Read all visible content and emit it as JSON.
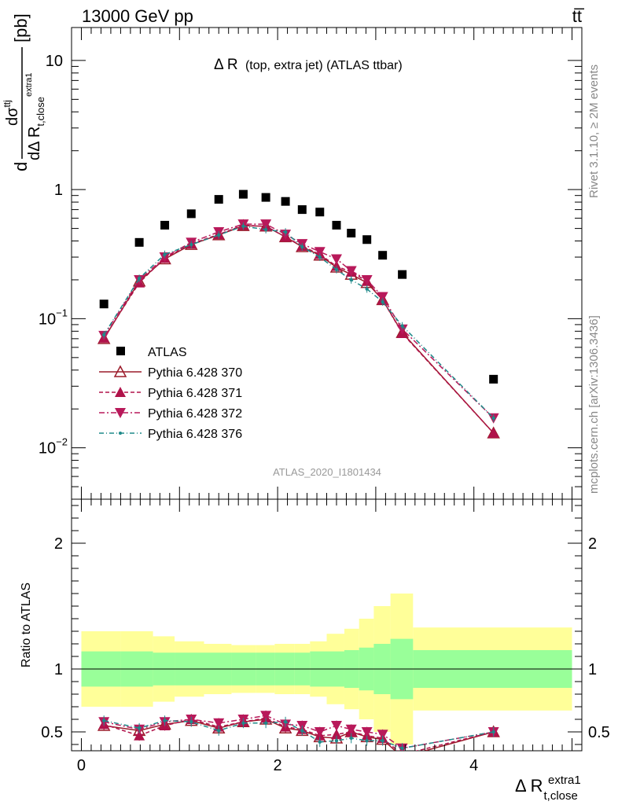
{
  "header": {
    "energy_label": "13000 GeV pp",
    "process_label": "tt̅"
  },
  "side_labels": {
    "rivet": "Rivet 3.1.10, ≥ 2M events",
    "mcplots": "mcplots.cern.ch [arXiv:1306.3436]"
  },
  "main_plot": {
    "title_main": "Δ R",
    "title_rest": "(top, extra jet) (ATLAS ttbar)",
    "ylabel": {
      "d1": "d",
      "dsigma": "dσ",
      "sigma_sup": "ttj",
      "denom_d": "dΔ R",
      "denom_sub": "t,close",
      "denom_sup": "extra1",
      "unit": "[pb]"
    },
    "y_ticks": [
      {
        "value": 10,
        "label": "10"
      },
      {
        "value": 1,
        "label": "1"
      },
      {
        "value": 0.1,
        "label": "10",
        "exp": "−1"
      },
      {
        "value": 0.01,
        "label": "10",
        "exp": "−2"
      }
    ],
    "analysis_tag": "ATLAS_2020_I1801434"
  },
  "ratio_plot": {
    "ylabel": "Ratio to ATLAS",
    "y_ticks": [
      "0.5",
      "1",
      "2"
    ],
    "x_ticks": [
      "0",
      "2",
      "4"
    ],
    "xlabel_main": "Δ R",
    "xlabel_sub": "t,close",
    "xlabel_sup": "extra1"
  },
  "legend": [
    {
      "label": "ATLAS",
      "key": "atlas"
    },
    {
      "label": "Pythia 6.428 370",
      "key": "p370"
    },
    {
      "label": "Pythia 6.428 371",
      "key": "p371"
    },
    {
      "label": "Pythia 6.428 372",
      "key": "p372"
    },
    {
      "label": "Pythia 6.428 376",
      "key": "p376"
    }
  ],
  "colors": {
    "data": "#000000",
    "p370": "#9b1b2a",
    "p371": "#b0124a",
    "p372": "#b8195a",
    "p376": "#1f8a8a",
    "band_inner": "#99ff99",
    "band_outer": "#ffff99"
  },
  "chart_data": {
    "type": "scatter",
    "y_scale": "log",
    "xlim": [
      -0.1,
      5.1
    ],
    "ylim": [
      0.004,
      18
    ],
    "ratio_ylim": [
      0.35,
      2.35
    ],
    "x": [
      0.23,
      0.59,
      0.85,
      1.12,
      1.4,
      1.65,
      1.88,
      2.08,
      2.25,
      2.43,
      2.6,
      2.75,
      2.91,
      3.07,
      3.27,
      4.2
    ],
    "bin_edges": [
      0.0,
      0.4,
      0.73,
      0.95,
      1.25,
      1.53,
      1.78,
      1.97,
      2.17,
      2.33,
      2.5,
      2.68,
      2.83,
      2.98,
      3.15,
      3.38,
      5.0
    ],
    "series": [
      {
        "name": "ATLAS",
        "key": "atlas",
        "values": [
          0.13,
          0.39,
          0.53,
          0.65,
          0.84,
          0.92,
          0.87,
          0.81,
          0.7,
          0.67,
          0.53,
          0.46,
          0.41,
          0.31,
          0.22,
          0.034
        ]
      },
      {
        "name": "Pythia 6.428 370",
        "key": "p370",
        "values": [
          0.07,
          0.195,
          0.29,
          0.375,
          0.445,
          0.525,
          0.52,
          0.43,
          0.36,
          0.31,
          0.25,
          0.22,
          0.19,
          0.14,
          0.078,
          0.013
        ]
      },
      {
        "name": "Pythia 6.428 371",
        "key": "p371",
        "values": [
          0.071,
          0.19,
          0.295,
          0.38,
          0.45,
          0.53,
          0.52,
          0.43,
          0.365,
          0.315,
          0.255,
          0.23,
          0.195,
          0.14,
          0.077,
          0.013
        ]
      },
      {
        "name": "Pythia 6.428 372",
        "key": "p372",
        "values": [
          0.074,
          0.2,
          0.3,
          0.39,
          0.47,
          0.54,
          0.54,
          0.45,
          0.38,
          0.33,
          0.29,
          0.235,
          0.2,
          0.148,
          0.083,
          0.017
        ]
      },
      {
        "name": "Pythia 6.428 376",
        "key": "p376",
        "values": [
          0.075,
          0.205,
          0.315,
          0.375,
          0.445,
          0.52,
          0.49,
          0.47,
          0.36,
          0.3,
          0.24,
          0.2,
          0.17,
          0.135,
          0.088,
          0.017
        ]
      }
    ],
    "ratio_series": [
      {
        "key": "p370",
        "values": [
          0.55,
          0.51,
          0.56,
          0.59,
          0.53,
          0.58,
          0.6,
          0.53,
          0.51,
          0.46,
          0.45,
          0.5,
          0.46,
          0.44,
          0.3,
          0.5
        ]
      },
      {
        "key": "p371",
        "values": [
          0.56,
          0.47,
          0.55,
          0.6,
          0.54,
          0.58,
          0.61,
          0.54,
          0.52,
          0.47,
          0.48,
          0.5,
          0.47,
          0.45,
          0.32,
          0.5
        ]
      },
      {
        "key": "p372",
        "values": [
          0.58,
          0.52,
          0.58,
          0.6,
          0.57,
          0.6,
          0.63,
          0.56,
          0.55,
          0.5,
          0.55,
          0.52,
          0.5,
          0.48,
          0.37,
          0.5
        ]
      },
      {
        "key": "p376",
        "values": [
          0.59,
          0.53,
          0.59,
          0.58,
          0.51,
          0.57,
          0.57,
          0.58,
          0.51,
          0.42,
          0.43,
          0.45,
          0.43,
          0.43,
          0.37,
          0.5
        ]
      }
    ],
    "ratio_band_inner": {
      "lo": [
        0.86,
        0.86,
        0.87,
        0.87,
        0.87,
        0.87,
        0.87,
        0.87,
        0.87,
        0.86,
        0.86,
        0.85,
        0.83,
        0.8,
        0.76,
        0.85
      ],
      "hi": [
        1.14,
        1.14,
        1.13,
        1.13,
        1.13,
        1.13,
        1.13,
        1.13,
        1.13,
        1.14,
        1.14,
        1.15,
        1.17,
        1.2,
        1.24,
        1.15
      ]
    },
    "ratio_band_outer": {
      "lo": [
        0.7,
        0.7,
        0.74,
        0.78,
        0.8,
        0.81,
        0.81,
        0.8,
        0.8,
        0.78,
        0.72,
        0.68,
        0.6,
        0.5,
        0.4,
        0.67
      ],
      "hi": [
        1.3,
        1.3,
        1.26,
        1.22,
        1.2,
        1.19,
        1.19,
        1.2,
        1.2,
        1.22,
        1.28,
        1.32,
        1.4,
        1.5,
        1.6,
        1.33
      ]
    }
  }
}
